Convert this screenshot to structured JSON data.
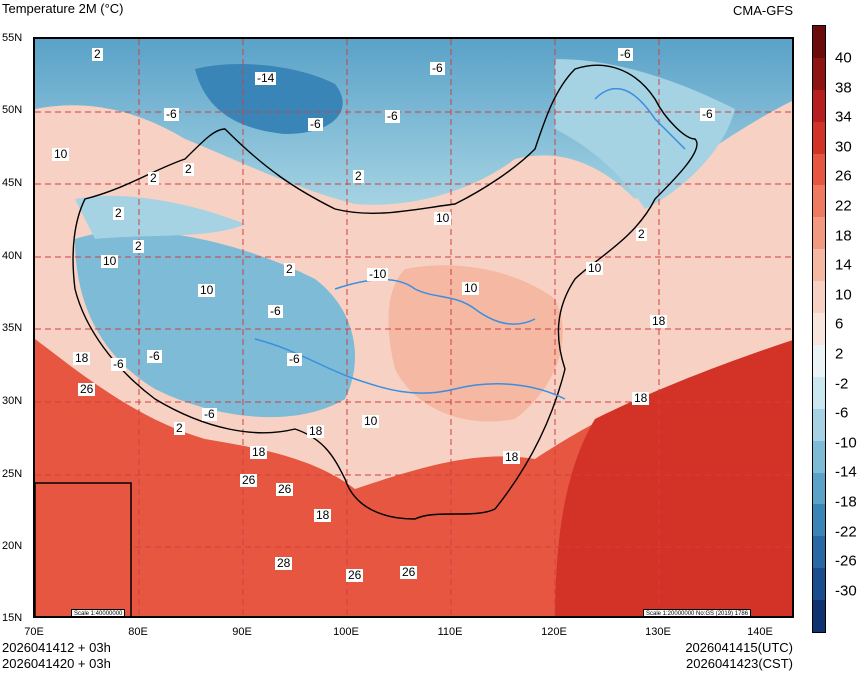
{
  "header": {
    "title": "Temperature  2M (°C)",
    "model": "CMA-GFS"
  },
  "footer": {
    "init_utc": "2026041412 + 03h",
    "init_cst": "2026041420 + 03h",
    "valid_utc": "2026041415(UTC)",
    "valid_cst": "2026041423(CST)"
  },
  "map": {
    "lat_labels": [
      "55N",
      "50N",
      "45N",
      "40N",
      "35N",
      "30N",
      "25N",
      "20N",
      "15N"
    ],
    "lon_labels": [
      "70E",
      "80E",
      "90E",
      "100E",
      "110E",
      "120E",
      "130E",
      "140E"
    ],
    "scale_main": "Scale 1:20000000 No:GS (2019) 1786",
    "scale_inset": "Scale 1:40000000",
    "contour_labels": [
      "2",
      "-14",
      "-6",
      "-6",
      "-6",
      "-6",
      "-6",
      "-6",
      "10",
      "2",
      "2",
      "2",
      "2",
      "10",
      "2",
      "10",
      "-6",
      "-6",
      "2",
      "-10",
      "10",
      "10",
      "18",
      "-6",
      "-6",
      "-6",
      "26",
      "2",
      "10",
      "18",
      "2",
      "10",
      "18",
      "18",
      "18",
      "26",
      "26",
      "18",
      "18",
      "28",
      "26",
      "26"
    ],
    "colors": {
      "grid": "#d04040",
      "rivers": "#3b8ee0",
      "borders": "#000000"
    }
  },
  "colorbar": {
    "ticks": [
      "40",
      "38",
      "34",
      "30",
      "26",
      "22",
      "18",
      "14",
      "10",
      "6",
      "2",
      "-2",
      "-6",
      "-10",
      "-14",
      "-18",
      "-22",
      "-26",
      "-30"
    ],
    "colors": [
      "#6b0c0c",
      "#8e1414",
      "#b71f1f",
      "#d33226",
      "#e65640",
      "#ee7a60",
      "#f29a80",
      "#f5b8a3",
      "#f7d2c4",
      "#f8e6de",
      "#eaf4f7",
      "#cbe7ef",
      "#a5d3e3",
      "#7dbbd6",
      "#5aa2c8",
      "#3a85b8",
      "#2868a4",
      "#1a4d8c",
      "#0f3270"
    ]
  }
}
